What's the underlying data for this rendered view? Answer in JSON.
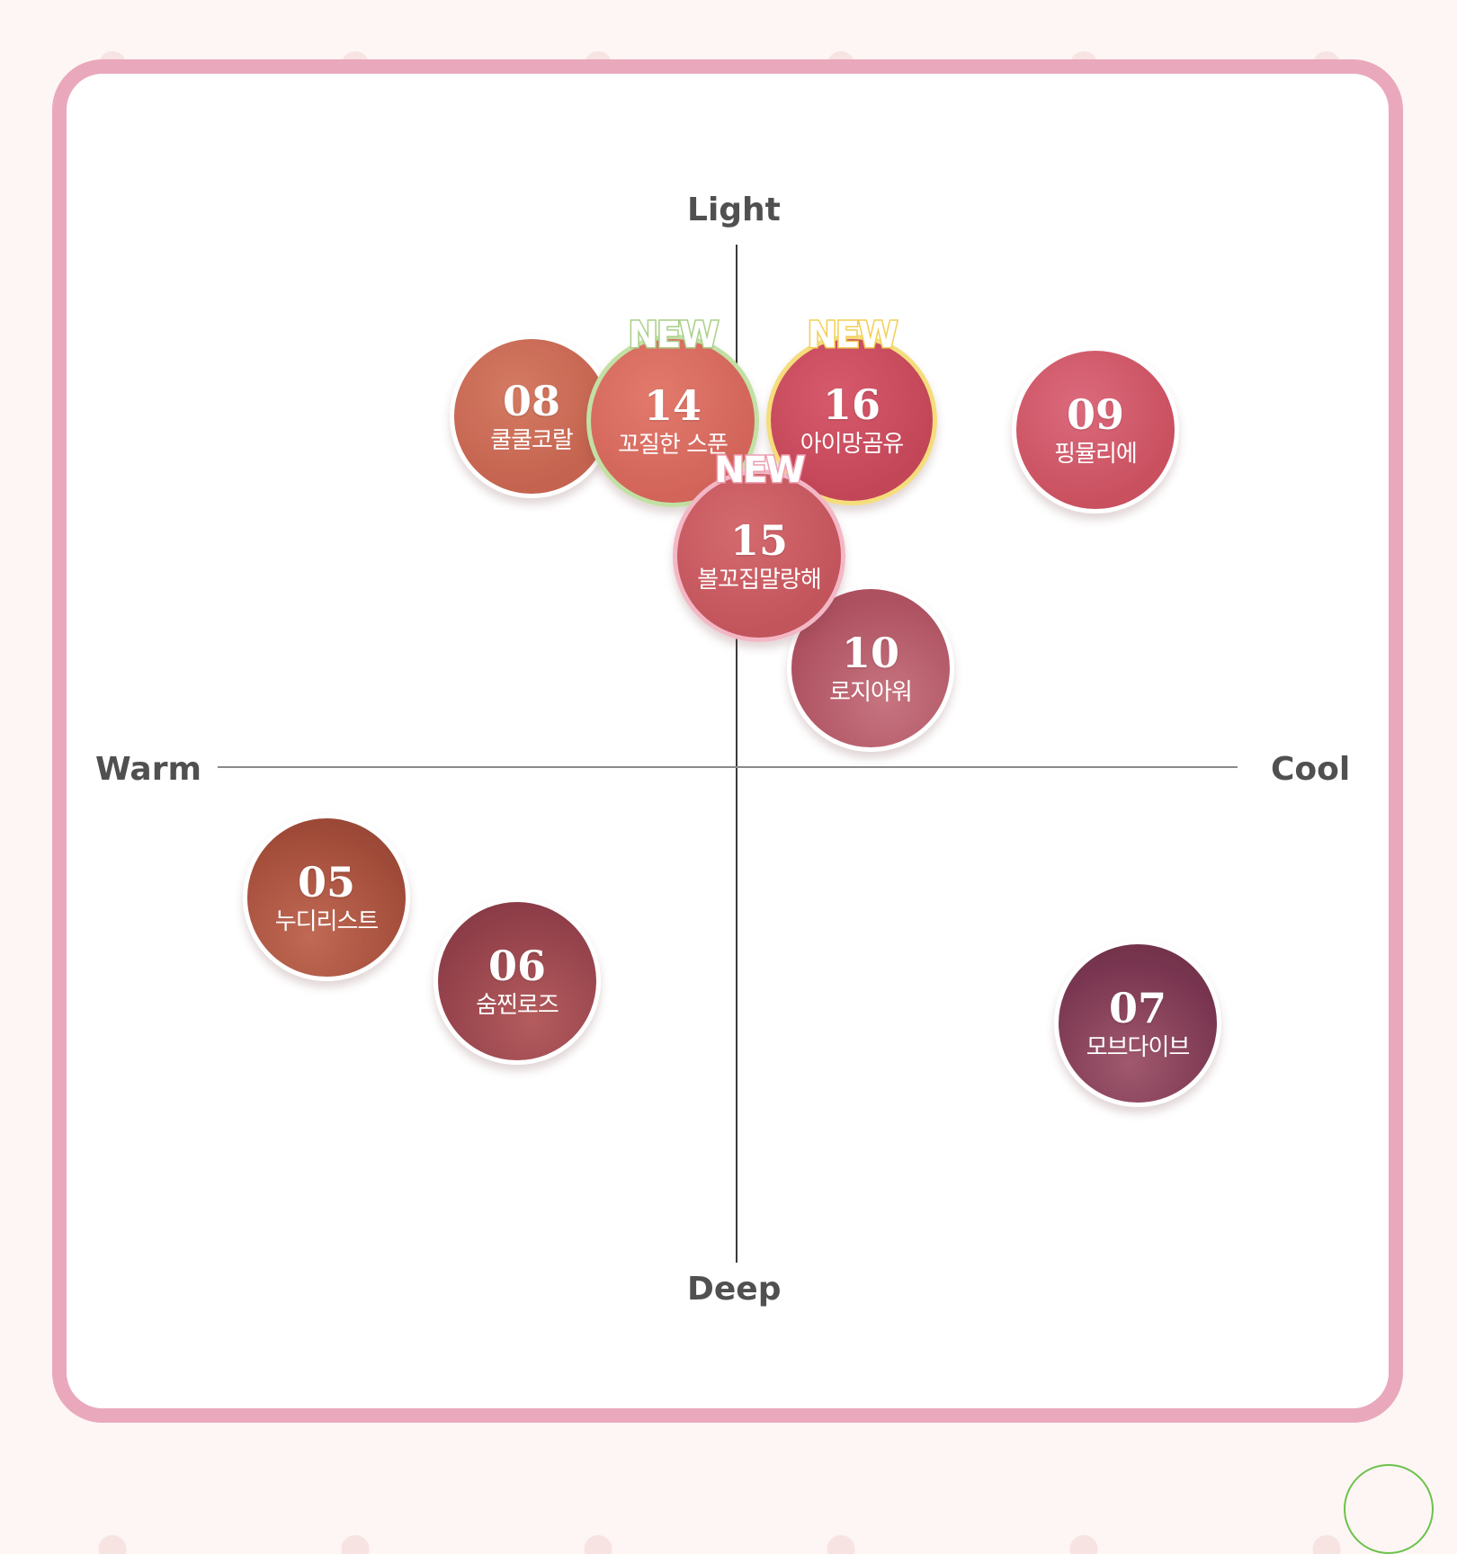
{
  "axes": {
    "top": "Light",
    "bottom": "Deep",
    "left": "Warm",
    "right": "Cool"
  },
  "shades": [
    {
      "id": "08",
      "name": "쿨쿨코랄",
      "badge": "",
      "color": "#c96a55"
    },
    {
      "id": "14",
      "name": "꼬질한 스푼",
      "badge": "NEW",
      "color": "#d86a60"
    },
    {
      "id": "16",
      "name": "아이망곰유",
      "badge": "NEW",
      "color": "#c94d5f"
    },
    {
      "id": "09",
      "name": "핑뮬리에",
      "badge": "",
      "color": "#d0586c"
    },
    {
      "id": "15",
      "name": "볼꼬집말랑해",
      "badge": "NEW",
      "color": "#c95c62"
    },
    {
      "id": "10",
      "name": "로지아워",
      "badge": "",
      "color": "#b35866"
    },
    {
      "id": "05",
      "name": "누디리스트",
      "badge": "",
      "color": "#a8503e"
    },
    {
      "id": "06",
      "name": "숨찐로즈",
      "badge": "",
      "color": "#99464a"
    },
    {
      "id": "07",
      "name": "모브다이브",
      "badge": "",
      "color": "#7e3950"
    }
  ],
  "colors": {
    "frame": "#eaa8bc",
    "badge_green": "#a9cf86",
    "badge_yellow": "#f2cf55",
    "badge_pink": "#ee9fb1"
  }
}
